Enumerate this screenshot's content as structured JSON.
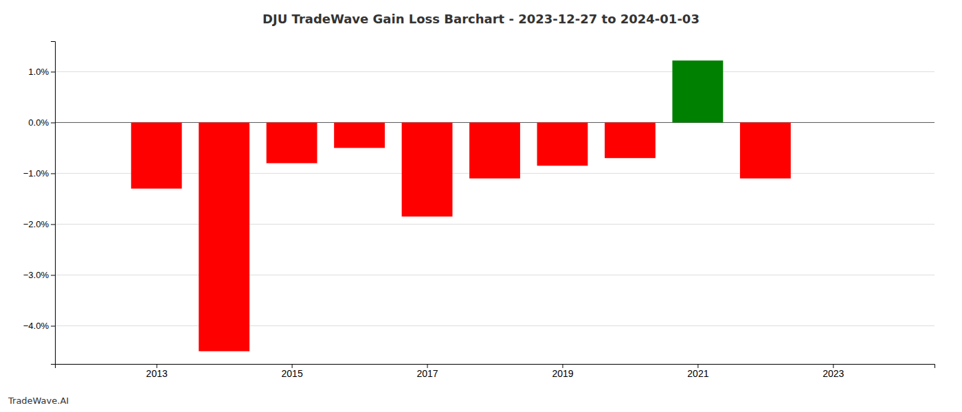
{
  "chart_data": {
    "type": "bar",
    "title": "DJU TradeWave Gain Loss Barchart - 2023-12-27 to 2024-01-03",
    "annotations": [
      "TradeWave.AI"
    ],
    "x": [
      2013,
      2014,
      2015,
      2016,
      2017,
      2018,
      2019,
      2020,
      2021,
      2022
    ],
    "values": [
      -1.3,
      -4.5,
      -0.8,
      -0.5,
      -1.85,
      -1.1,
      -0.85,
      -0.7,
      1.22,
      -1.1
    ],
    "colors": [
      "#ff0000",
      "#ff0000",
      "#ff0000",
      "#ff0000",
      "#ff0000",
      "#ff0000",
      "#ff0000",
      "#ff0000",
      "#008000",
      "#ff0000"
    ],
    "xlim": [
      2011.5,
      2024.5
    ],
    "xticks": [
      2013,
      2015,
      2017,
      2019,
      2021,
      2023
    ],
    "ylim": [
      -4.75,
      1.6
    ],
    "yticks": [
      {
        "value": -4,
        "label": "−4.0%"
      },
      {
        "value": -3,
        "label": "−3.0%"
      },
      {
        "value": -2,
        "label": "−2.0%"
      },
      {
        "value": -1,
        "label": "−1.0%"
      },
      {
        "value": 0,
        "label": "0.0%"
      },
      {
        "value": 1,
        "label": "1.0%"
      }
    ],
    "grid": true
  }
}
